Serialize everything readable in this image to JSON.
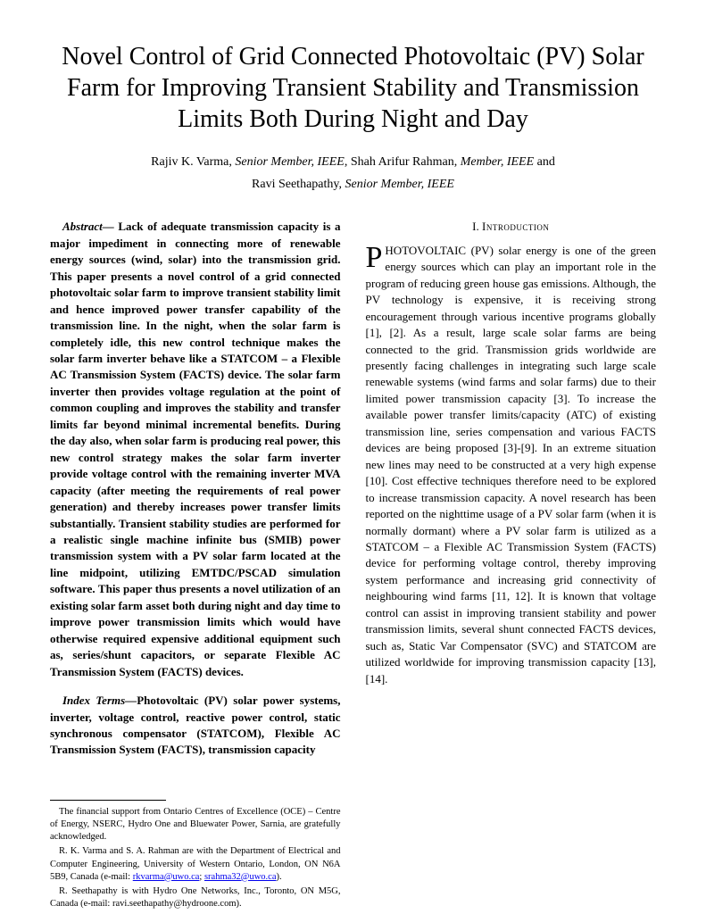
{
  "title": "Novel Control of Grid Connected Photovoltaic (PV) Solar Farm for Improving Transient Stability and Transmission Limits Both During Night and Day",
  "authors": {
    "line1_name1": "Rajiv K. Varma, ",
    "line1_role1": "Senior Member, IEEE",
    "line1_sep1": ", ",
    "line1_name2": "Shah Arifur Rahman, ",
    "line1_role2": "Member, IEEE",
    "line1_and": " and",
    "line2_name": "Ravi Seethapathy, ",
    "line2_role": "Senior Member, IEEE"
  },
  "abstract": {
    "label": "Abstract— ",
    "text": "Lack of adequate transmission capacity is a major impediment in connecting more of renewable energy sources (wind, solar) into the transmission grid. This paper presents a novel control of a grid connected photovoltaic solar farm  to improve transient stability limit and hence improved power transfer capability of the transmission line. In the night, when the solar farm is completely idle, this new control technique makes the solar farm inverter behave like a STATCOM – a Flexible AC Transmission System (FACTS) device. The solar farm inverter then provides voltage regulation at the point of common coupling and improves the stability and transfer limits far beyond minimal incremental benefits. During the day also, when solar farm is producing real power, this new control strategy makes the solar farm inverter provide voltage control with the remaining inverter MVA capacity (after meeting the requirements of  real power generation) and thereby increases power transfer limits substantially. Transient stability studies are performed for a realistic single machine infinite bus (SMIB) power transmission system with a PV solar farm located at the line midpoint, utilizing EMTDC/PSCAD simulation software. This paper thus presents a novel utilization of an existing solar farm asset both during night and day time to improve power transmission limits  which would have otherwise required expensive additional equipment such as, series/shunt capacitors, or separate Flexible AC Transmission System (FACTS) devices."
  },
  "index_terms": {
    "label": "Index Terms—",
    "text": "Photovoltaic (PV) solar power systems, inverter, voltage control, reactive power control, static synchronous compensator (STATCOM), Flexible AC Transmission System (FACTS), transmission capacity"
  },
  "footnote": {
    "p1": "The financial support from Ontario Centres of Excellence (OCE) – Centre of Energy, NSERC, Hydro One and Bluewater Power, Sarnia, are gratefully acknowledged.",
    "p2a": "R. K. Varma and S. A. Rahman are with the Department of Electrical and Computer Engineering, University of Western Ontario, London, ON N6A 5B9, Canada (e-mail: ",
    "p2_link1": "rkvarma@uwo.ca",
    "p2_sep": "; ",
    "p2_link2": "srahma32@uwo.ca",
    "p2b": ").",
    "p3": "R. Seethapathy is with Hydro One Networks, Inc., Toronto, ON M5G, Canada (e-mail: ravi.seethapathy@hydroone.com)."
  },
  "section1": {
    "number": "I.  ",
    "title": "Introduction",
    "dropcap": "P",
    "body": "HOTOVOLTAIC (PV) solar energy is one of the green energy sources which can play an important role in the program of reducing green house gas emissions. Although, the PV technology is expensive, it is receiving strong encouragement through various incentive programs globally [1], [2]. As a result, large scale solar farms are being connected to the grid. Transmission grids worldwide are presently facing challenges in integrating such large scale renewable systems (wind farms and solar farms) due to their limited power transmission capacity [3]. To increase the available power transfer limits/capacity  (ATC) of existing transmission line, series compensation and various FACTS devices are being proposed [3]-[9]. In an extreme situation new lines may need to be constructed at a very high expense [10]. Cost effective techniques therefore need to be explored to increase transmission capacity. A novel research has been reported on the nighttime usage of a PV solar farm (when it is normally dormant) where a PV solar farm is utilized as a STATCOM – a Flexible AC Transmission System (FACTS) device for performing voltage control, thereby improving system performance and increasing grid connectivity of neighbouring wind farms [11, 12]. It is known that voltage control can assist in improving transient stability and power transmission limits,  several shunt connected FACTS devices, such as, Static Var Compensator (SVC) and STATCOM are utilized worldwide for improving transmission capacity [13], [14]."
  },
  "colors": {
    "text": "#000000",
    "background": "#ffffff",
    "link": "#0000ee"
  }
}
